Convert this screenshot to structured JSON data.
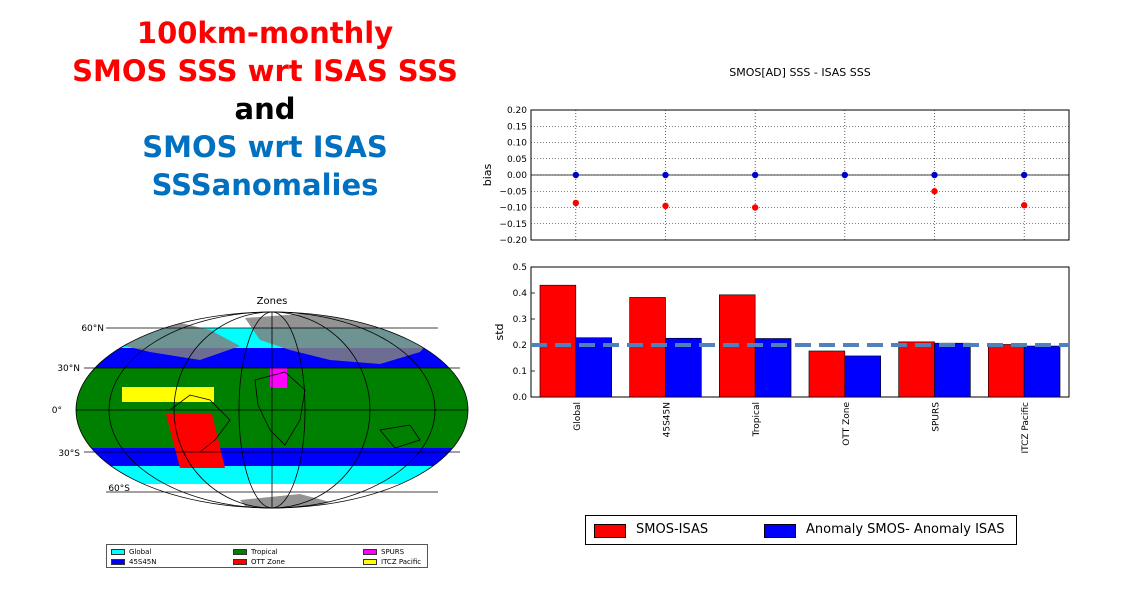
{
  "title_lines": [
    {
      "text": "100km-monthly",
      "color": "#ff0000"
    },
    {
      "text": "SMOS SSS wrt ISAS SSS",
      "color": "#ff0000"
    },
    {
      "text": "and",
      "color": "#000000"
    },
    {
      "text": "SMOS wrt ISAS",
      "color": "#0070c0"
    },
    {
      "text": "SSSanomalies",
      "color": "#0070c0"
    }
  ],
  "map": {
    "title": "Zones",
    "lat_labels": [
      "60°N",
      "30°N",
      "0°",
      "30°S",
      "60°S"
    ],
    "legend": [
      {
        "label": "Global",
        "color": "#00ffff"
      },
      {
        "label": "45S45N",
        "color": "#0000ff"
      },
      {
        "label": "Tropical",
        "color": "#008000"
      },
      {
        "label": "OTT Zone",
        "color": "#ff0000"
      },
      {
        "label": "SPURS",
        "color": "#ff00ff"
      },
      {
        "label": "ITCZ Pacific",
        "color": "#ffff00"
      }
    ]
  },
  "chart_data": [
    {
      "type": "scatter",
      "title": "SMOS[AD] SSS - ISAS SSS",
      "ylabel": "bias",
      "ylim": [
        -0.2,
        0.2
      ],
      "yticks": [
        "0.20",
        "0.15",
        "0.10",
        "0.05",
        "0.00",
        "−0.05",
        "−0.10",
        "−0.15",
        "−0.20"
      ],
      "grid": true,
      "categories": [
        "Global",
        "45S45N",
        "Tropical",
        "OTT Zone",
        "SPURS",
        "ITCZ Pacific"
      ],
      "series": [
        {
          "name": "SMOS-ISAS",
          "color": "#ff0000",
          "values": [
            -0.086,
            -0.095,
            -0.1,
            null,
            -0.05,
            -0.093
          ]
        },
        {
          "name": "Anomaly SMOS- Anomaly ISAS",
          "color": "#0000cc",
          "values": [
            0.0,
            0.0,
            0.0,
            0.0,
            0.0,
            0.0
          ]
        }
      ]
    },
    {
      "type": "bar",
      "ylabel": "std",
      "ylim": [
        0,
        0.5
      ],
      "yticks": [
        "0.5",
        "0.4",
        "0.3",
        "0.2",
        "0.1",
        "0.0"
      ],
      "categories": [
        "Global",
        "45S45N",
        "Tropical",
        "OTT Zone",
        "SPURS",
        "ITCZ Pacific"
      ],
      "series": [
        {
          "name": "SMOS-ISAS",
          "color": "#ff0000",
          "values": [
            0.43,
            0.383,
            0.393,
            0.177,
            0.212,
            0.202
          ]
        },
        {
          "name": "Anomaly SMOS- Anomaly ISAS",
          "color": "#0000ff",
          "values": [
            0.228,
            0.226,
            0.225,
            0.158,
            0.207,
            0.196
          ]
        }
      ],
      "reference_line": {
        "value": 0.2,
        "color": "#4f81bd",
        "style": "dashed"
      }
    }
  ],
  "legend": [
    {
      "label": "SMOS-ISAS",
      "color": "#ff0000"
    },
    {
      "label": "Anomaly SMOS- Anomaly ISAS",
      "color": "#0000ff"
    }
  ]
}
